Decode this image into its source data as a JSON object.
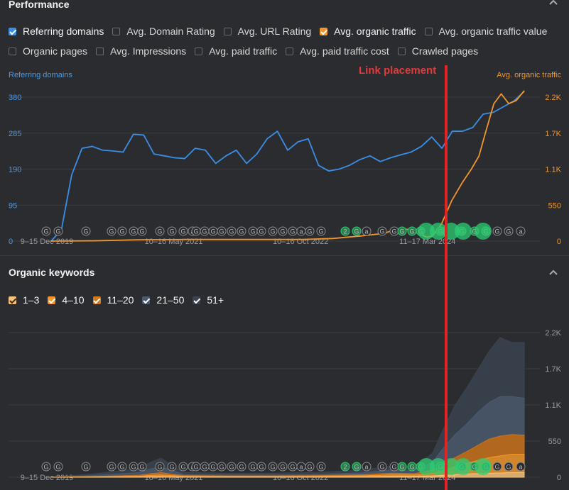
{
  "performance": {
    "title": "Performance",
    "checkboxes_row1": [
      {
        "label": "Referring domains",
        "checked": true,
        "color": "#3b8ee6"
      },
      {
        "label": "Avg. Domain Rating",
        "checked": false
      },
      {
        "label": "Avg. URL Rating",
        "checked": false
      },
      {
        "label": "Avg. organic traffic",
        "checked": true,
        "color": "#f0962b"
      },
      {
        "label": "Avg. organic traffic value",
        "checked": false
      }
    ],
    "checkboxes_row2": [
      {
        "label": "Organic pages",
        "checked": false
      },
      {
        "label": "Avg. Impressions",
        "checked": false
      },
      {
        "label": "Avg. paid traffic",
        "checked": false
      },
      {
        "label": "Avg. paid traffic cost",
        "checked": false
      },
      {
        "label": "Crawled pages",
        "checked": false
      }
    ]
  },
  "annotation": {
    "link_placement": "Link placement"
  },
  "organic_keywords": {
    "title": "Organic keywords",
    "checkboxes": [
      {
        "label": "1–3",
        "checked": true,
        "color": "#f6c27a"
      },
      {
        "label": "4–10",
        "checked": true,
        "color": "#f0962b"
      },
      {
        "label": "11–20",
        "checked": true,
        "color": "#d07a1a"
      },
      {
        "label": "21–50",
        "checked": true,
        "color": "#4b5a6e"
      },
      {
        "label": "51+",
        "checked": true,
        "color": "#3a4350"
      }
    ]
  },
  "event_markers": {
    "labels": [
      "G",
      "G",
      "G",
      "G",
      "G",
      "G",
      "G",
      "G",
      "G",
      "G",
      "a",
      "G",
      "G",
      "G",
      "G",
      "G",
      "G",
      "G",
      "G",
      "G",
      "G",
      "G",
      "a",
      "G",
      "G",
      "2",
      "G",
      "a",
      "G"
    ],
    "color": "#8a8c90",
    "highlight_color": "#2ecc71"
  },
  "chart_data": [
    {
      "type": "line",
      "xticks": [
        "9–15 Dec 2019",
        "10–16 May 2021",
        "10–16 Oct 2022",
        "11–17 Mar 2024"
      ],
      "xtick_dates": [
        "2019-12-09",
        "2021-05-10",
        "2022-10-10",
        "2024-03-11"
      ],
      "yaxis_left": {
        "label": "Referring domains",
        "ticks": [
          "0",
          "95",
          "190",
          "285",
          "380"
        ],
        "ylim": [
          0,
          380
        ],
        "color": "#4a9ae8"
      },
      "yaxis_right": {
        "label": "Avg. organic traffic",
        "ticks": [
          "0",
          "550",
          "1.1K",
          "1.7K",
          "2.2K"
        ],
        "ylim": [
          0,
          2200
        ],
        "color": "#f0962b"
      },
      "series": [
        {
          "name": "Referring domains",
          "axis": "left",
          "color": "#3b8ee6",
          "points": [
            [
              "2019-12-09",
              0
            ],
            [
              "2020-01-20",
              30
            ],
            [
              "2020-03-02",
              175
            ],
            [
              "2020-04-13",
              245
            ],
            [
              "2020-05-25",
              250
            ],
            [
              "2020-07-06",
              240
            ],
            [
              "2020-08-17",
              238
            ],
            [
              "2020-09-28",
              235
            ],
            [
              "2020-11-09",
              282
            ],
            [
              "2020-12-21",
              280
            ],
            [
              "2021-02-01",
              230
            ],
            [
              "2021-03-15",
              225
            ],
            [
              "2021-04-26",
              220
            ],
            [
              "2021-06-07",
              218
            ],
            [
              "2021-07-19",
              245
            ],
            [
              "2021-08-30",
              240
            ],
            [
              "2021-10-11",
              205
            ],
            [
              "2021-11-22",
              225
            ],
            [
              "2022-01-03",
              240
            ],
            [
              "2022-02-14",
              205
            ],
            [
              "2022-03-28",
              230
            ],
            [
              "2022-05-09",
              270
            ],
            [
              "2022-06-20",
              290
            ],
            [
              "2022-08-01",
              240
            ],
            [
              "2022-09-12",
              262
            ],
            [
              "2022-10-24",
              270
            ],
            [
              "2022-12-05",
              200
            ],
            [
              "2023-01-16",
              185
            ],
            [
              "2023-02-27",
              190
            ],
            [
              "2023-04-10",
              200
            ],
            [
              "2023-05-22",
              215
            ],
            [
              "2023-07-03",
              225
            ],
            [
              "2023-08-14",
              210
            ],
            [
              "2023-09-25",
              220
            ],
            [
              "2023-11-06",
              228
            ],
            [
              "2023-12-18",
              235
            ],
            [
              "2024-01-29",
              250
            ],
            [
              "2024-03-11",
              275
            ],
            [
              "2024-04-22",
              245
            ],
            [
              "2024-06-03",
              290
            ],
            [
              "2024-07-15",
              290
            ],
            [
              "2024-08-26",
              300
            ],
            [
              "2024-10-07",
              335
            ],
            [
              "2024-11-18",
              340
            ],
            [
              "2024-12-30",
              355
            ],
            [
              "2025-02-10",
              370
            ],
            [
              "2025-03-24",
              395
            ]
          ]
        },
        {
          "name": "Avg. organic traffic",
          "axis": "right",
          "color": "#f0962b",
          "points": [
            [
              "2019-12-09",
              0
            ],
            [
              "2020-06-01",
              5
            ],
            [
              "2020-12-01",
              20
            ],
            [
              "2021-06-01",
              25
            ],
            [
              "2021-12-01",
              25
            ],
            [
              "2022-06-01",
              25
            ],
            [
              "2022-10-01",
              25
            ],
            [
              "2023-02-01",
              40
            ],
            [
              "2023-06-01",
              80
            ],
            [
              "2023-09-01",
              120
            ],
            [
              "2023-10-15",
              180
            ],
            [
              "2023-12-01",
              180
            ],
            [
              "2024-01-15",
              120
            ],
            [
              "2024-02-20",
              60
            ],
            [
              "2024-03-15",
              80
            ],
            [
              "2024-04-20",
              260
            ],
            [
              "2024-06-01",
              620
            ],
            [
              "2024-07-15",
              900
            ],
            [
              "2024-08-20",
              1100
            ],
            [
              "2024-09-20",
              1300
            ],
            [
              "2024-10-20",
              1700
            ],
            [
              "2024-11-20",
              2100
            ],
            [
              "2024-12-20",
              2250
            ],
            [
              "2025-01-20",
              2100
            ],
            [
              "2025-02-20",
              2150
            ],
            [
              "2025-03-24",
              2300
            ]
          ]
        }
      ],
      "grid": true
    },
    {
      "type": "area",
      "stacked": true,
      "xticks": [
        "9–15 Dec 2019",
        "10–16 May 2021",
        "10–16 Oct 2022",
        "11–17 Mar 2024"
      ],
      "xtick_dates": [
        "2019-12-09",
        "2021-05-10",
        "2022-10-10",
        "2024-03-11"
      ],
      "yaxis_right": {
        "ticks": [
          "0",
          "550",
          "1.1K",
          "1.7K",
          "2.2K"
        ],
        "ylim": [
          0,
          2200
        ]
      },
      "x": [
        "2019-12-09",
        "2020-06-01",
        "2020-12-01",
        "2021-01-15",
        "2021-03-01",
        "2021-06-01",
        "2021-12-01",
        "2022-06-01",
        "2022-12-01",
        "2023-06-01",
        "2023-10-01",
        "2024-01-01",
        "2024-03-15",
        "2024-05-01",
        "2024-06-15",
        "2024-08-01",
        "2024-09-15",
        "2024-11-01",
        "2024-12-15",
        "2025-02-01",
        "2025-03-24"
      ],
      "series": [
        {
          "name": "1–3",
          "color": "#f6c27a",
          "values": [
            0,
            2,
            5,
            8,
            10,
            5,
            4,
            4,
            5,
            8,
            12,
            15,
            20,
            30,
            40,
            50,
            55,
            60,
            65,
            70,
            70
          ]
        },
        {
          "name": "4–10",
          "color": "#f0962b",
          "values": [
            0,
            5,
            10,
            20,
            25,
            10,
            8,
            8,
            10,
            15,
            25,
            20,
            40,
            80,
            120,
            160,
            200,
            240,
            260,
            280,
            280
          ]
        },
        {
          "name": "11–20",
          "color": "#c9721a",
          "values": [
            0,
            5,
            15,
            25,
            35,
            10,
            8,
            8,
            10,
            15,
            25,
            20,
            50,
            100,
            140,
            180,
            230,
            280,
            300,
            300,
            290
          ]
        },
        {
          "name": "21–50",
          "color": "#4b5a6e",
          "values": [
            0,
            15,
            40,
            70,
            90,
            20,
            15,
            15,
            20,
            30,
            50,
            40,
            120,
            250,
            350,
            420,
            500,
            560,
            600,
            580,
            560
          ]
        },
        {
          "name": "51+",
          "color": "#3a4350",
          "values": [
            0,
            25,
            60,
            100,
            130,
            30,
            25,
            25,
            30,
            40,
            60,
            50,
            140,
            300,
            450,
            550,
            650,
            780,
            900,
            820,
            850
          ]
        }
      ],
      "grid": true
    }
  ]
}
